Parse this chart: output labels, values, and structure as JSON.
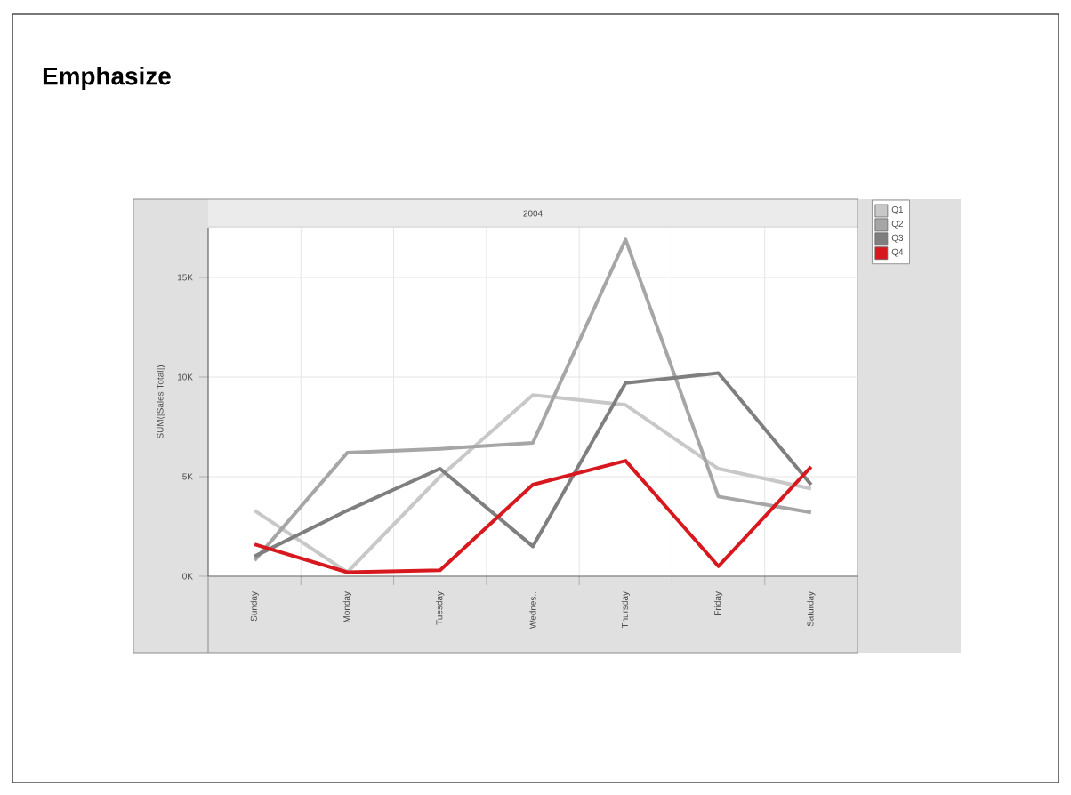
{
  "chart_data": {
    "type": "line",
    "title": "Emphasize",
    "subtitle": "2004",
    "ylabel": "SUM([Sales Total])",
    "categories": [
      "Sunday",
      "Monday",
      "Tuesday",
      "Wednes..",
      "Thursday",
      "Friday",
      "Saturday"
    ],
    "series": [
      {
        "name": "Q1",
        "color": "#c8c8c8",
        "values": [
          3300,
          200,
          5000,
          9100,
          8600,
          5400,
          4400
        ]
      },
      {
        "name": "Q2",
        "color": "#a6a6a6",
        "values": [
          800,
          6200,
          6400,
          6700,
          16900,
          4000,
          3200
        ]
      },
      {
        "name": "Q3",
        "color": "#7f7f7f",
        "values": [
          1000,
          3300,
          5400,
          1500,
          9700,
          10200,
          4600
        ]
      },
      {
        "name": "Q4",
        "color": "#d7191f",
        "values": [
          1600,
          200,
          300,
          4600,
          5800,
          500,
          5500
        ]
      }
    ],
    "ylim": [
      0,
      17500
    ],
    "yticks": [
      {
        "value": 0,
        "label": "0K"
      },
      {
        "value": 5000,
        "label": "5K"
      },
      {
        "value": 10000,
        "label": "10K"
      },
      {
        "value": 15000,
        "label": "15K"
      }
    ],
    "grid": true,
    "legend": "top right",
    "marker": "none",
    "line_style": "solid"
  }
}
